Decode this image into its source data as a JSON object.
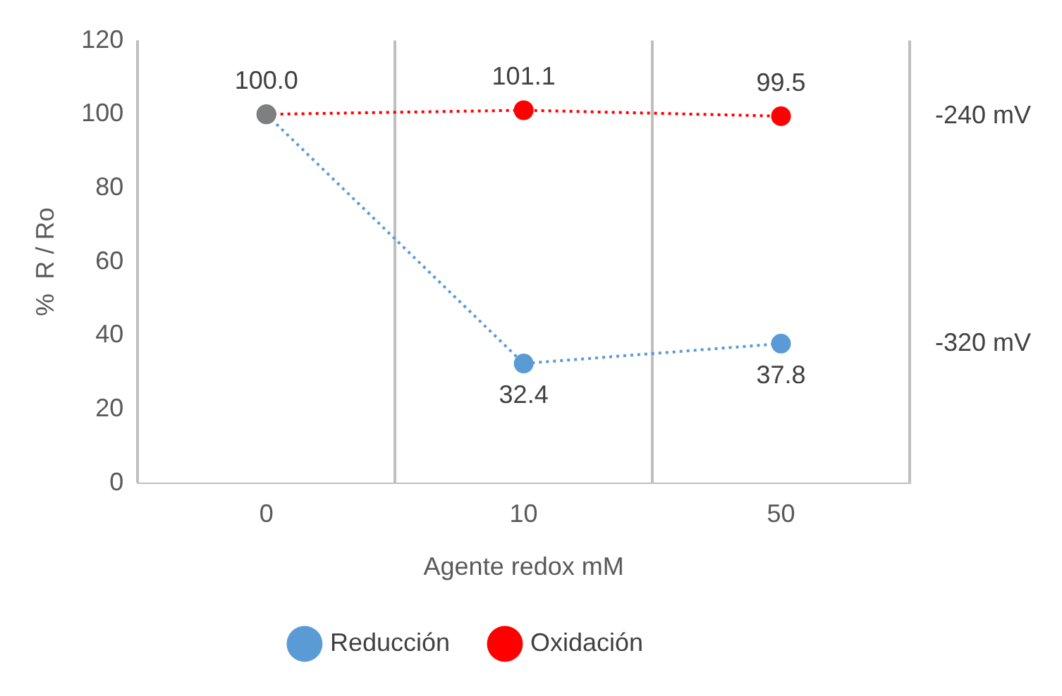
{
  "chart_data": {
    "type": "line",
    "xlabel": "Agente redox mM",
    "ylabel": "%  R / Ro",
    "categories": [
      "0",
      "10",
      "50"
    ],
    "series": [
      {
        "name": "Reducción",
        "color": "#5b9bd5",
        "values": [
          100,
          32.4,
          37.8
        ],
        "value_labels": [
          null,
          "32.4",
          "37.8"
        ]
      },
      {
        "name": "Oxidación",
        "color": "#ff0000",
        "colors": [
          "#7f7f7f",
          "#ff0000",
          "#ff0000"
        ],
        "values": [
          100,
          101.1,
          99.5
        ],
        "value_labels": [
          "100.0",
          "101.1",
          "99.5"
        ]
      }
    ],
    "annotations": [
      "-240 mV",
      "-320 mV"
    ],
    "ylim": [
      0,
      120
    ],
    "yticks": [
      0,
      20,
      40,
      60,
      80,
      100,
      120
    ],
    "grid": "x",
    "legend": "bottom",
    "marker": "circle",
    "line_style": "dotted"
  }
}
